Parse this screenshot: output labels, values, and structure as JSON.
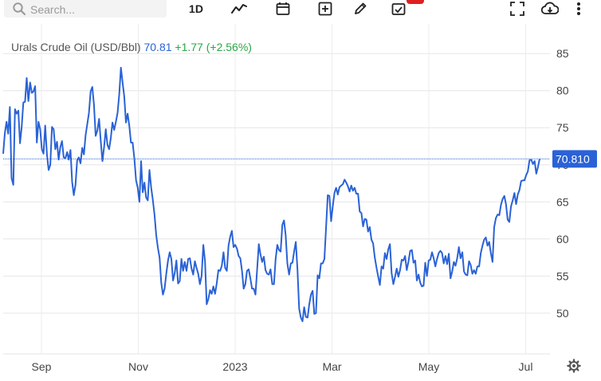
{
  "toolbar": {
    "search_placeholder": "Search...",
    "interval_label": "1D",
    "icons": [
      "search-icon",
      "line-chart-icon",
      "calendar-icon",
      "add-indicator-icon",
      "draw-pencil-icon",
      "event-checklist-icon",
      "fullscreen-icon",
      "download-cloud-icon",
      "more-vertical-icon",
      "settings-gear-icon"
    ]
  },
  "quote": {
    "name": "Urals Crude Oil (USD/Bbl)",
    "price": "70.81",
    "change": "+1.77 (+2.56%)"
  },
  "colors": {
    "line": "#2a62d6",
    "up": "#2aa745",
    "price_tag_bg": "#2a62d6",
    "grid": "#e6e6e6"
  },
  "chart_data": {
    "type": "line",
    "series": [
      {
        "values": [
          71.5,
          74.3,
          75.8,
          74.2,
          77.8,
          68.2,
          67.3,
          77.5,
          76.9,
          77.3,
          72.9,
          75.1,
          78.4,
          78.5,
          81.7,
          78.6,
          81.1,
          79.7,
          79.9,
          80.6,
          73.0,
          75.8,
          74.8,
          72.1,
          71.5,
          75.3,
          71.4,
          69.3,
          70.0,
          75.1,
          74.8,
          72.1,
          73.1,
          70.7,
          72.4,
          73.2,
          71.0,
          70.9,
          71.7,
          70.7,
          72.0,
          67.7,
          65.9,
          67.3,
          70.6,
          71.0,
          70.2,
          72.3,
          71.4,
          74.0,
          75.5,
          77.0,
          79.9,
          80.5,
          78.1,
          73.9,
          74.6,
          76.2,
          73.2,
          70.5,
          72.4,
          74.8,
          72.7,
          72.1,
          73.6,
          75.7,
          74.7,
          75.8,
          77.0,
          79.5,
          83.1,
          81.1,
          79.2,
          75.7,
          76.9,
          75.3,
          73.0,
          73.0,
          70.8,
          67.9,
          66.9,
          65.0,
          70.5,
          66.3,
          67.6,
          65.6,
          65.2,
          69.3,
          66.9,
          65.2,
          63.2,
          60.5,
          58.8,
          57.5,
          54.1,
          52.5,
          53.3,
          55.3,
          57.1,
          58.2,
          57.3,
          54.4,
          55.4,
          57.1,
          54.0,
          54.3,
          57.3,
          55.7,
          56.9,
          55.7,
          57.3,
          57.4,
          56.0,
          55.2,
          57.0,
          56.1,
          55.3,
          53.9,
          55.0,
          59.2,
          57.0,
          51.2,
          51.9,
          53.1,
          52.6,
          53.6,
          52.6,
          54.0,
          55.8,
          55.7,
          56.4,
          58.2,
          56.1,
          55.7,
          59.1,
          60.3,
          61.1,
          58.9,
          59.2,
          58.7,
          57.7,
          57.4,
          55.7,
          53.3,
          53.9,
          55.7,
          55.9,
          54.7,
          53.3,
          53.3,
          52.5,
          55.9,
          59.3,
          57.9,
          56.9,
          57.6,
          55.8,
          55.3,
          55.2,
          55.9,
          53.9,
          53.9,
          57.3,
          59.2,
          58.5,
          58.3,
          61.9,
          62.5,
          60.5,
          56.7,
          55.2,
          56.7,
          56.8,
          58.3,
          59.6,
          55.9,
          50.6,
          49.4,
          48.9,
          50.8,
          49.5,
          49.4,
          51.2,
          52.5,
          53.0,
          49.9,
          50.0,
          55.1,
          54.7,
          56.7,
          56.7,
          57.3,
          61.6,
          65.9,
          65.8,
          62.4,
          64.4,
          66.2,
          66.9,
          66.0,
          67.0,
          67.2,
          67.4,
          68.0,
          67.6,
          67.1,
          66.4,
          67.2,
          66.5,
          66.9,
          66.1,
          66.1,
          63.7,
          63.5,
          61.7,
          62.7,
          62.6,
          61.0,
          61.6,
          59.9,
          59.4,
          57.5,
          56.1,
          54.9,
          53.8,
          56.3,
          56.0,
          58.1,
          57.3,
          58.6,
          59.3,
          55.4,
          53.9,
          54.9,
          56.0,
          54.9,
          55.8,
          57.2,
          57.1,
          57.7,
          55.8,
          56.9,
          58.4,
          58.5,
          56.8,
          57.1,
          54.4,
          55.2,
          54.1,
          53.6,
          53.7,
          56.8,
          55.0,
          57.1,
          57.2,
          58.2,
          57.4,
          56.3,
          57.3,
          58.1,
          58.4,
          58.1,
          56.7,
          57.7,
          56.6,
          58.0,
          54.7,
          55.6,
          56.9,
          56.4,
          57.4,
          58.9,
          57.4,
          58.2,
          55.6,
          55.2,
          55.1,
          57.0,
          56.5,
          55.3,
          55.8,
          55.3,
          56.3,
          56.3,
          58.1,
          59.1,
          59.9,
          60.2,
          59.1,
          59.6,
          58.1,
          56.9,
          61.6,
          62.8,
          63.3,
          63.2,
          64.6,
          65.4,
          65.8,
          64.7,
          62.6,
          62.3,
          64.4,
          65.2,
          66.2,
          64.7,
          66.0,
          66.6,
          67.8,
          67.9,
          67.9,
          68.6,
          69.1,
          70.6,
          70.7,
          70.1,
          70.5,
          68.8,
          69.7,
          70.8
        ]
      }
    ],
    "x_tick_labels": [
      "Sep",
      "Nov",
      "2023",
      "Mar",
      "May",
      "Jul"
    ],
    "y_ticks": [
      85,
      80,
      75,
      70,
      65,
      60,
      55,
      50
    ],
    "ylim": [
      44.5,
      89
    ],
    "last_value_label": "70.810",
    "grid": true
  }
}
